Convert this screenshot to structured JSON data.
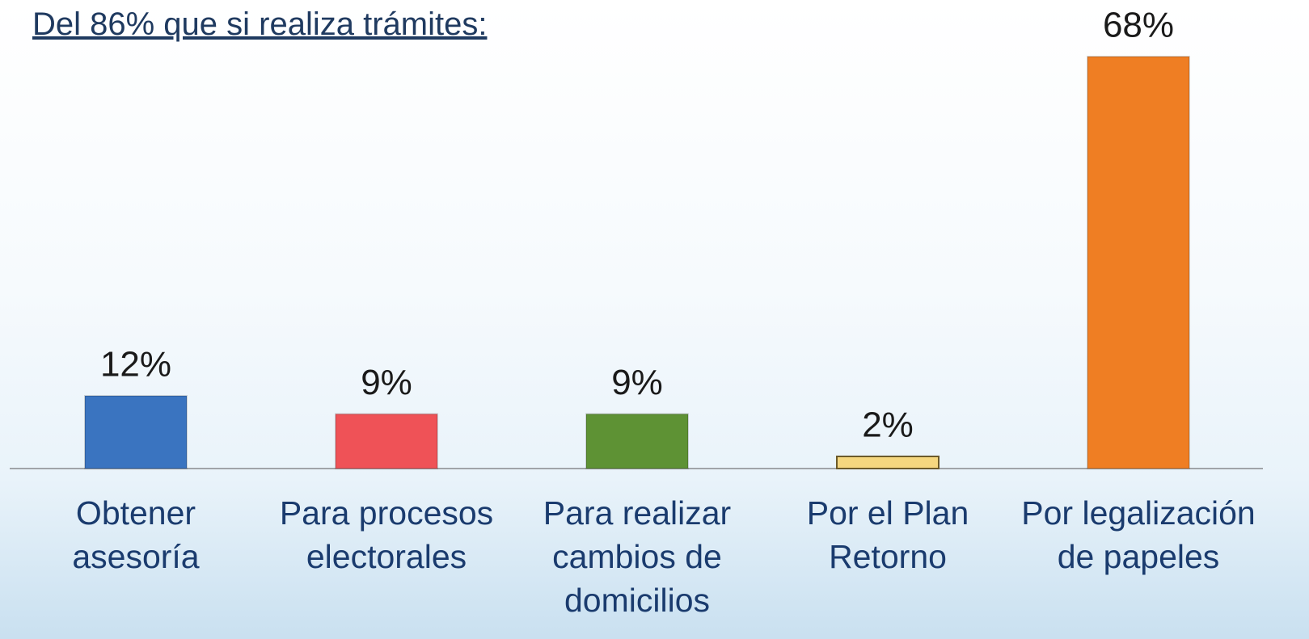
{
  "chart_data": {
    "type": "bar",
    "title": "Del 86% que si realiza trámites:",
    "categories": [
      "Obtener asesoría",
      "Para procesos electorales",
      "Para realizar cambios de domicilios",
      "Por el Plan Retorno",
      "Por legalización de papeles"
    ],
    "values": [
      12,
      9,
      9,
      2,
      68
    ],
    "value_labels": [
      "12%",
      "9%",
      "9%",
      "2%",
      "68%"
    ],
    "colors": [
      "#3a74c0",
      "#ef5257",
      "#5e9234",
      "#f5d77f",
      "#ef7e23"
    ]
  }
}
